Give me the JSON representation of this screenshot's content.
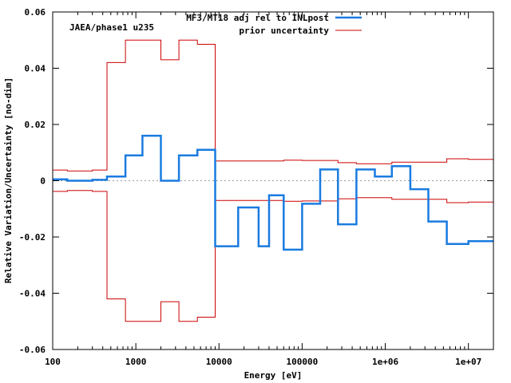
{
  "chart_data": {
    "type": "line",
    "subtype": "step",
    "title": "",
    "annotation": "JAEA/phase1 u235",
    "xlabel": "Energy [eV]",
    "ylabel": "Relative Variation/Uncertainty [no-dim]",
    "xscale": "log",
    "xlim": [
      100,
      20000000
    ],
    "ylim": [
      -0.06,
      0.06
    ],
    "x_ticks": [
      {
        "value": 100,
        "label": "100"
      },
      {
        "value": 1000,
        "label": "1000"
      },
      {
        "value": 10000,
        "label": "10000"
      },
      {
        "value": 100000,
        "label": "100000"
      },
      {
        "value": 1000000,
        "label": "1e+06"
      },
      {
        "value": 10000000,
        "label": "1e+07"
      }
    ],
    "y_ticks": [
      {
        "value": -0.06,
        "label": "-0.06"
      },
      {
        "value": -0.04,
        "label": "-0.04"
      },
      {
        "value": -0.02,
        "label": "-0.02"
      },
      {
        "value": 0,
        "label": "0"
      },
      {
        "value": 0.02,
        "label": "0.02"
      },
      {
        "value": 0.04,
        "label": "0.04"
      },
      {
        "value": 0.06,
        "label": "0.06"
      }
    ],
    "zero_line": true,
    "legend_position": "top-right",
    "series": [
      {
        "name": "MF3/MT18 adj rel to INLpost",
        "color": "#1a7be0",
        "style": "step-thick",
        "mirror": false,
        "edges": [
          100,
          150,
          300,
          450,
          750,
          1200,
          2000,
          3300,
          5500,
          9000,
          17000,
          30000,
          40000,
          60000,
          100000,
          165000,
          270000,
          450000,
          750000,
          1200000,
          2000000,
          3300000,
          5500000,
          10000000,
          20000000
        ],
        "values": [
          0.0005,
          0.0,
          0.0003,
          0.0015,
          0.009,
          0.016,
          0.0,
          0.009,
          0.011,
          -0.0233,
          -0.0095,
          -0.0233,
          -0.0052,
          -0.0245,
          -0.0082,
          0.004,
          -0.0155,
          0.004,
          0.0015,
          0.0052,
          -0.003,
          -0.0145,
          -0.0225,
          -0.0215
        ]
      },
      {
        "name": "prior uncertainty",
        "color": "#cc0000",
        "style": "step-thin",
        "mirror": true,
        "edges": [
          100,
          150,
          300,
          450,
          750,
          1200,
          2000,
          3300,
          5500,
          9000,
          17000,
          30000,
          40000,
          60000,
          100000,
          165000,
          270000,
          450000,
          750000,
          1200000,
          2000000,
          3300000,
          5500000,
          10000000,
          20000000
        ],
        "values": [
          0.0038,
          0.0035,
          0.0038,
          0.042,
          0.05,
          0.05,
          0.043,
          0.05,
          0.0485,
          0.007,
          0.007,
          0.007,
          0.007,
          0.0073,
          0.0072,
          0.0072,
          0.0064,
          0.006,
          0.006,
          0.0066,
          0.0066,
          0.0066,
          0.0078,
          0.0076
        ]
      }
    ]
  }
}
